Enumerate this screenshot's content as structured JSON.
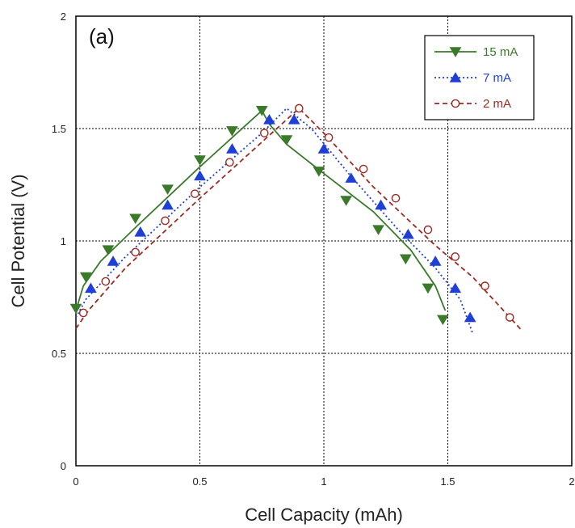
{
  "chart_data": {
    "type": "line",
    "panel_label": "(a)",
    "xlabel": "Cell Capacity (mAh)",
    "ylabel": "Cell Potential (V)",
    "xlim": [
      0,
      2
    ],
    "ylim": [
      0,
      2
    ],
    "x_ticks": [
      "0",
      "0.5",
      "1",
      "1.5",
      "2"
    ],
    "y_ticks": [
      "0",
      "0.5",
      "1",
      "1.5",
      "2"
    ],
    "x_tick_values": [
      0,
      0.5,
      1,
      1.5,
      2
    ],
    "y_tick_values": [
      0,
      0.5,
      1,
      1.5,
      2
    ],
    "grid": true,
    "legend_position": "top-right",
    "series": [
      {
        "name": "15 mA",
        "color": "#3a7a2a",
        "line_style": "solid",
        "marker": "triangle-down",
        "filled": true,
        "line": [
          [
            0,
            0.69
          ],
          [
            0.03,
            0.8
          ],
          [
            0.1,
            0.91
          ],
          [
            0.25,
            1.07
          ],
          [
            0.5,
            1.33
          ],
          [
            0.75,
            1.58
          ],
          [
            0.78,
            1.52
          ],
          [
            0.85,
            1.43
          ],
          [
            1.0,
            1.3
          ],
          [
            1.2,
            1.13
          ],
          [
            1.35,
            0.96
          ],
          [
            1.45,
            0.8
          ],
          [
            1.49,
            0.69
          ]
        ],
        "markers": [
          [
            0,
            0.7
          ],
          [
            0.04,
            0.84
          ],
          [
            0.13,
            0.96
          ],
          [
            0.24,
            1.1
          ],
          [
            0.37,
            1.23
          ],
          [
            0.5,
            1.36
          ],
          [
            0.63,
            1.49
          ],
          [
            0.75,
            1.58
          ],
          [
            0.85,
            1.45
          ],
          [
            0.98,
            1.31
          ],
          [
            1.09,
            1.18
          ],
          [
            1.22,
            1.05
          ],
          [
            1.33,
            0.92
          ],
          [
            1.42,
            0.79
          ],
          [
            1.48,
            0.65
          ]
        ]
      },
      {
        "name": "7 mA",
        "color": "#1f3fd6",
        "line_style": "dotted",
        "marker": "triangle-up",
        "filled": true,
        "line": [
          [
            0,
            0.66
          ],
          [
            0.04,
            0.74
          ],
          [
            0.2,
            0.93
          ],
          [
            0.5,
            1.24
          ],
          [
            0.75,
            1.48
          ],
          [
            0.85,
            1.59
          ],
          [
            0.95,
            1.5
          ],
          [
            1.1,
            1.3
          ],
          [
            1.3,
            1.05
          ],
          [
            1.45,
            0.88
          ],
          [
            1.55,
            0.74
          ],
          [
            1.6,
            0.59
          ]
        ],
        "markers": [
          [
            0.06,
            0.79
          ],
          [
            0.15,
            0.91
          ],
          [
            0.26,
            1.04
          ],
          [
            0.37,
            1.16
          ],
          [
            0.5,
            1.29
          ],
          [
            0.63,
            1.41
          ],
          [
            0.78,
            1.54
          ],
          [
            0.88,
            1.54
          ],
          [
            1.0,
            1.41
          ],
          [
            1.11,
            1.28
          ],
          [
            1.23,
            1.16
          ],
          [
            1.34,
            1.03
          ],
          [
            1.45,
            0.91
          ],
          [
            1.53,
            0.79
          ],
          [
            1.59,
            0.66
          ]
        ]
      },
      {
        "name": "2 mA",
        "color": "#9a2a22",
        "line_style": "dashed",
        "marker": "circle-open",
        "filled": false,
        "line": [
          [
            0,
            0.61
          ],
          [
            0.05,
            0.69
          ],
          [
            0.2,
            0.88
          ],
          [
            0.5,
            1.19
          ],
          [
            0.75,
            1.44
          ],
          [
            0.9,
            1.59
          ],
          [
            1.0,
            1.48
          ],
          [
            1.2,
            1.24
          ],
          [
            1.45,
            0.98
          ],
          [
            1.6,
            0.84
          ],
          [
            1.7,
            0.72
          ],
          [
            1.8,
            0.6
          ]
        ],
        "markers": [
          [
            0.03,
            0.68
          ],
          [
            0.12,
            0.82
          ],
          [
            0.24,
            0.95
          ],
          [
            0.36,
            1.09
          ],
          [
            0.48,
            1.21
          ],
          [
            0.62,
            1.35
          ],
          [
            0.76,
            1.48
          ],
          [
            0.9,
            1.59
          ],
          [
            1.02,
            1.46
          ],
          [
            1.16,
            1.32
          ],
          [
            1.29,
            1.19
          ],
          [
            1.42,
            1.05
          ],
          [
            1.53,
            0.93
          ],
          [
            1.65,
            0.8
          ],
          [
            1.75,
            0.66
          ]
        ]
      }
    ]
  }
}
